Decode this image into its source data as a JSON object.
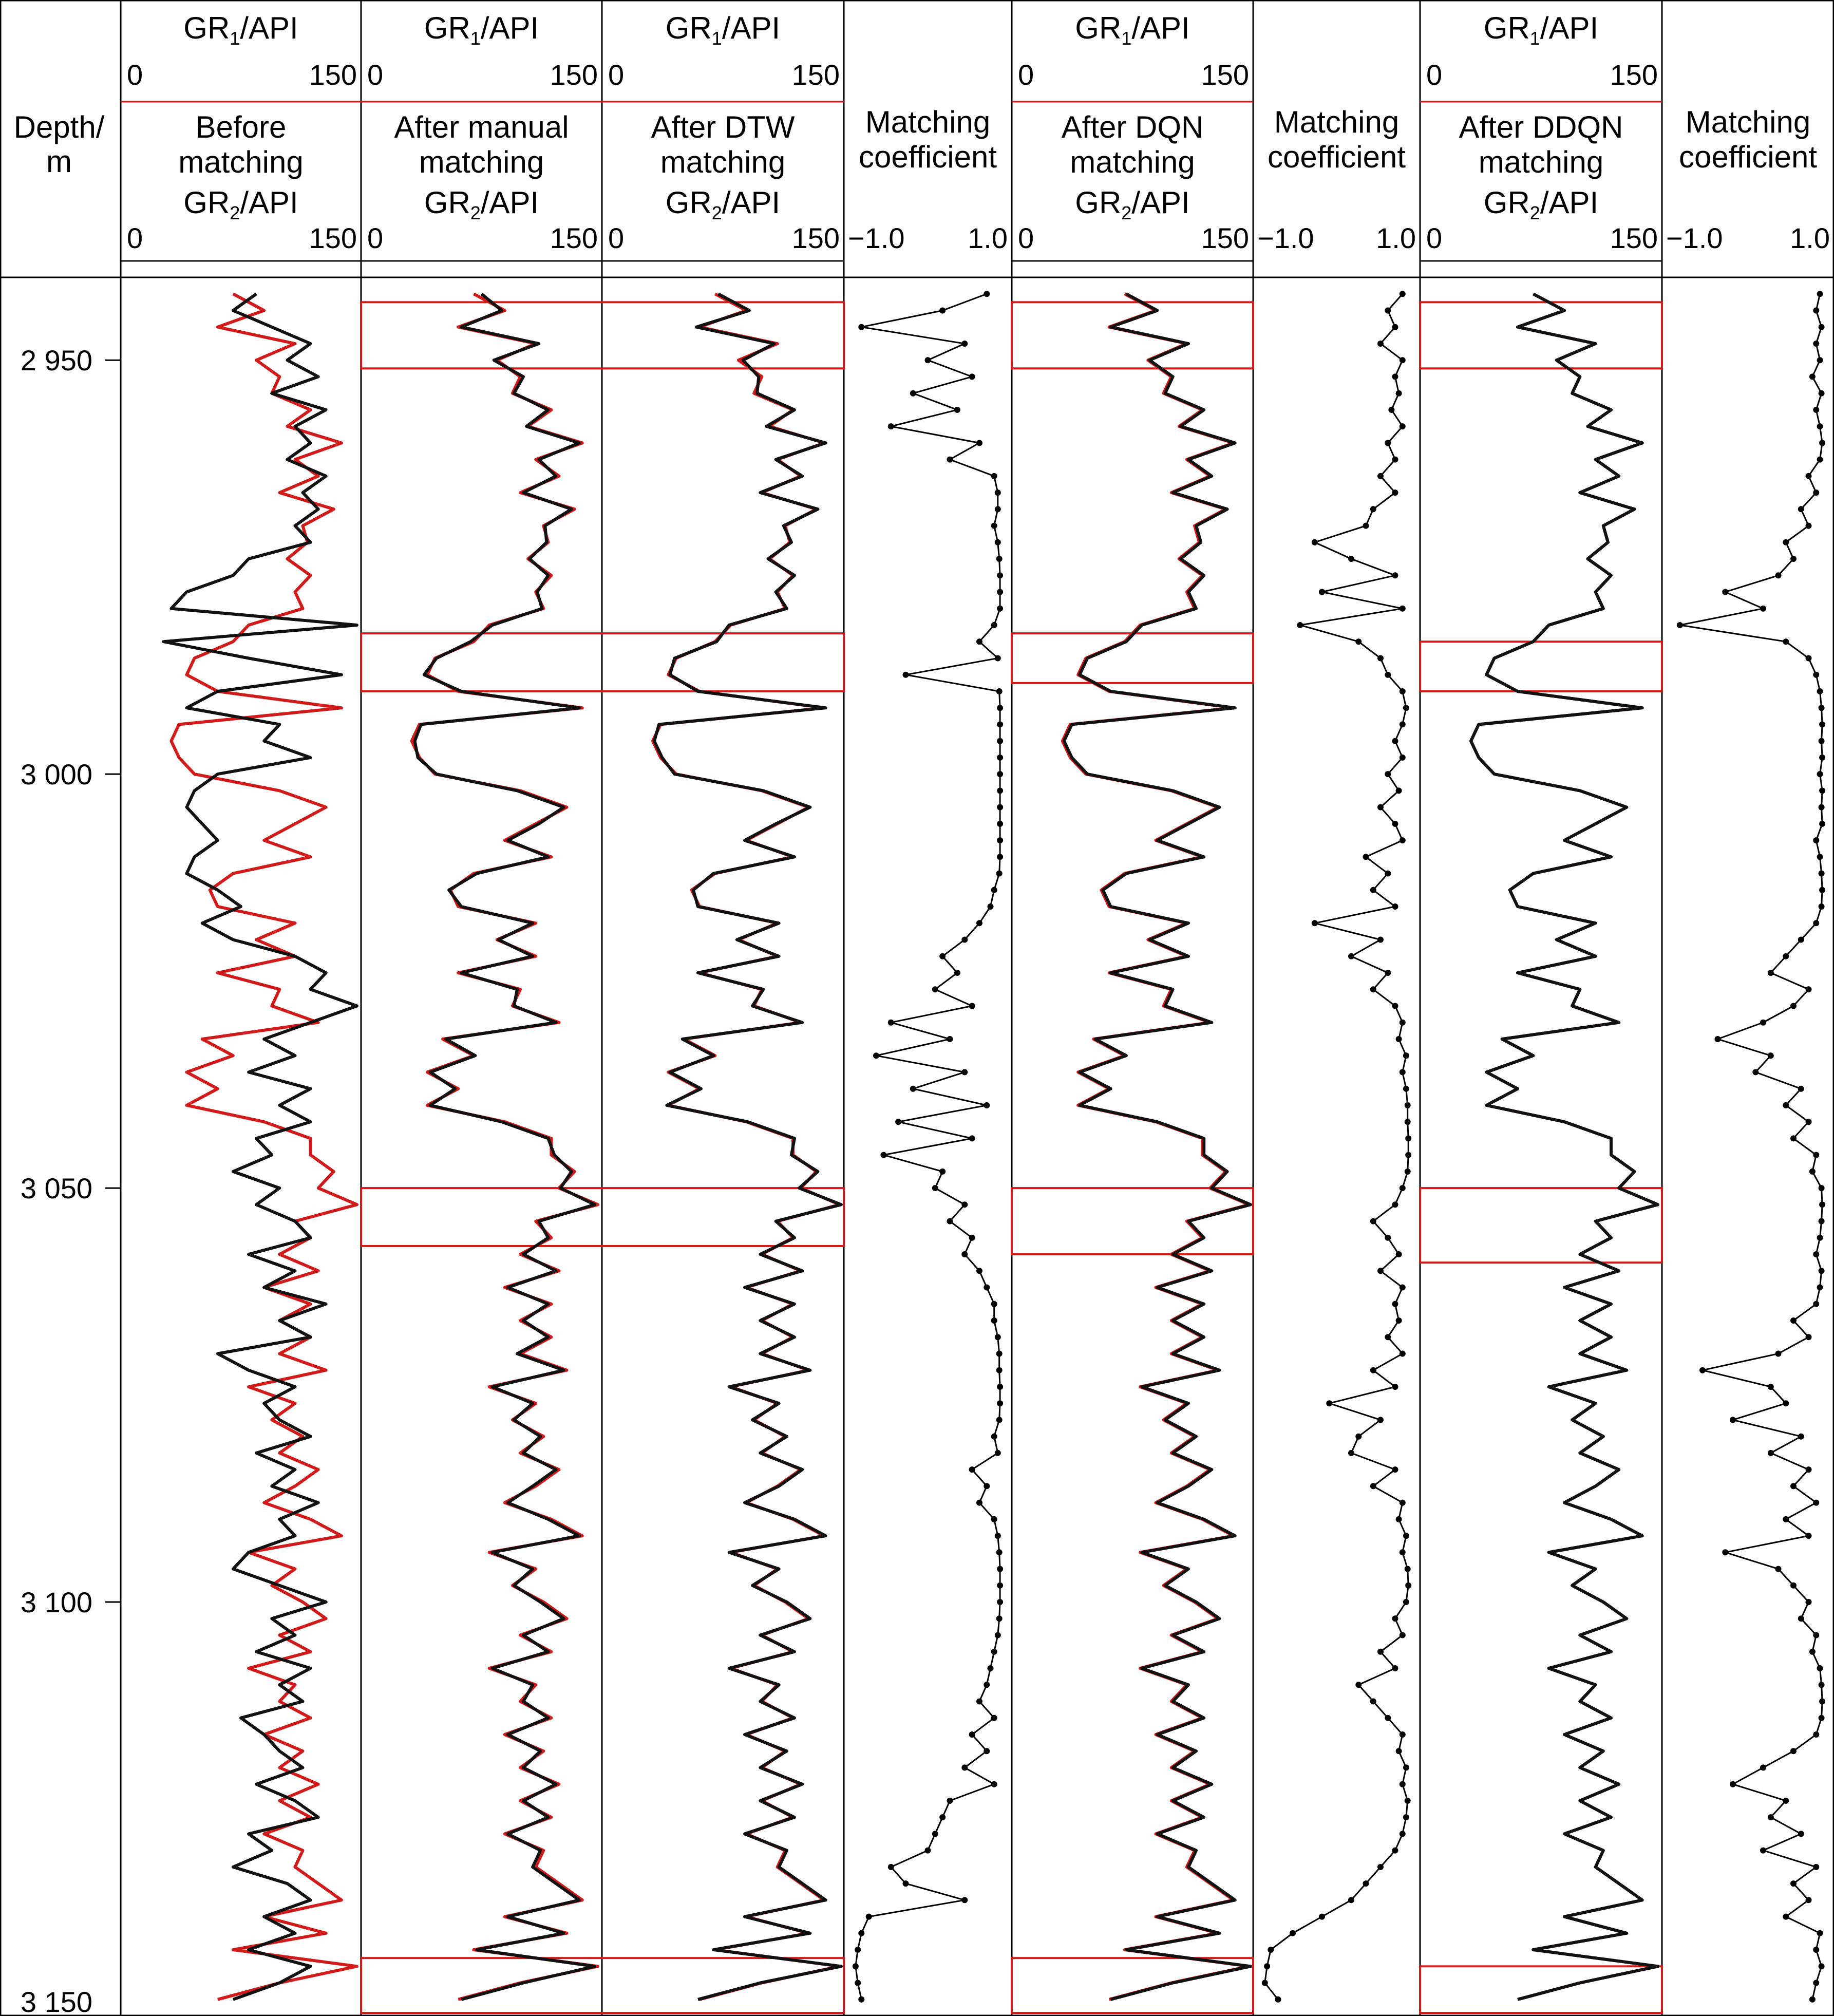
{
  "colors": {
    "gr1": "#d11a1a",
    "gr2": "#111111",
    "box": "#d11a1a",
    "frame": "#000000"
  },
  "depth_column": {
    "title_line1": "Depth/",
    "title_line2": "m"
  },
  "tracks": [
    {
      "kind": "log",
      "top_label_main": "GR",
      "top_label_sub": "1",
      "top_label_rest": "/API",
      "top_min": "0",
      "top_max": "150",
      "title_lines": [
        "Before",
        "matching"
      ],
      "bottom_label_main": "GR",
      "bottom_label_sub": "2",
      "bottom_label_rest": "/API",
      "bottom_min": "0",
      "bottom_max": "150"
    },
    {
      "kind": "log",
      "top_label_main": "GR",
      "top_label_sub": "1",
      "top_label_rest": "/API",
      "top_min": "0",
      "top_max": "150",
      "title_lines": [
        "After manual",
        "matching"
      ],
      "bottom_label_main": "GR",
      "bottom_label_sub": "2",
      "bottom_label_rest": "/API",
      "bottom_min": "0",
      "bottom_max": "150"
    },
    {
      "kind": "log",
      "top_label_main": "GR",
      "top_label_sub": "1",
      "top_label_rest": "/API",
      "top_min": "0",
      "top_max": "150",
      "title_lines": [
        "After DTW",
        "matching"
      ],
      "bottom_label_main": "GR",
      "bottom_label_sub": "2",
      "bottom_label_rest": "/API",
      "bottom_min": "0",
      "bottom_max": "150"
    },
    {
      "kind": "coef",
      "title_lines": [
        "Matching",
        "coefficient"
      ],
      "min": "−1.0",
      "max": "1.0"
    },
    {
      "kind": "log",
      "top_label_main": "GR",
      "top_label_sub": "1",
      "top_label_rest": "/API",
      "top_min": "0",
      "top_max": "150",
      "title_lines": [
        "After DQN",
        "matching"
      ],
      "bottom_label_main": "GR",
      "bottom_label_sub": "2",
      "bottom_label_rest": "/API",
      "bottom_min": "0",
      "bottom_max": "150"
    },
    {
      "kind": "coef",
      "title_lines": [
        "Matching",
        "coefficient"
      ],
      "min": "−1.0",
      "max": "1.0"
    },
    {
      "kind": "log",
      "top_label_main": "GR",
      "top_label_sub": "1",
      "top_label_rest": "/API",
      "top_min": "0",
      "top_max": "150",
      "title_lines": [
        "After DDQN",
        "matching"
      ],
      "bottom_label_main": "GR",
      "bottom_label_sub": "2",
      "bottom_label_rest": "/API",
      "bottom_min": "0",
      "bottom_max": "150"
    },
    {
      "kind": "coef",
      "title_lines": [
        "Matching",
        "coefficient"
      ],
      "min": "−1.0",
      "max": "1.0"
    }
  ],
  "chart_data": {
    "type": "line",
    "depth_axis": {
      "range": [
        2940,
        3150
      ],
      "ticks": [
        2950,
        3000,
        3050,
        3100,
        3150
      ],
      "tick_labels": [
        "2 950",
        "3 000",
        "3 050",
        "3 100",
        "3 150"
      ]
    },
    "gr_axis": {
      "range": [
        0,
        150
      ]
    },
    "coef_axis": {
      "range": [
        -1.0,
        1.0
      ]
    },
    "depth": [
      2942,
      2944,
      2946,
      2948,
      2950,
      2952,
      2954,
      2956,
      2958,
      2960,
      2962,
      2964,
      2966,
      2968,
      2970,
      2972,
      2974,
      2976,
      2978,
      2980,
      2982,
      2984,
      2986,
      2988,
      2990,
      2992,
      2994,
      2996,
      2998,
      3000,
      3002,
      3004,
      3006,
      3008,
      3010,
      3012,
      3014,
      3016,
      3018,
      3020,
      3022,
      3024,
      3026,
      3028,
      3030,
      3032,
      3034,
      3036,
      3038,
      3040,
      3042,
      3044,
      3046,
      3048,
      3050,
      3052,
      3054,
      3056,
      3058,
      3060,
      3062,
      3064,
      3066,
      3068,
      3070,
      3072,
      3074,
      3076,
      3078,
      3080,
      3082,
      3084,
      3086,
      3088,
      3090,
      3092,
      3094,
      3096,
      3098,
      3100,
      3102,
      3104,
      3106,
      3108,
      3110,
      3112,
      3114,
      3116,
      3118,
      3120,
      3122,
      3124,
      3126,
      3128,
      3130,
      3132,
      3134,
      3136,
      3138,
      3140,
      3142,
      3144,
      3146,
      3148
    ],
    "gr1_reference": [
      70,
      90,
      60,
      110,
      85,
      100,
      95,
      120,
      105,
      140,
      110,
      125,
      100,
      135,
      115,
      118,
      105,
      120,
      110,
      115,
      80,
      70,
      45,
      40,
      60,
      140,
      35,
      30,
      35,
      45,
      100,
      130,
      110,
      90,
      120,
      70,
      55,
      60,
      110,
      85,
      110,
      60,
      100,
      95,
      125,
      50,
      70,
      40,
      60,
      40,
      90,
      120,
      120,
      135,
      125,
      150,
      110,
      120,
      100,
      125,
      90,
      120,
      100,
      120,
      100,
      130,
      80,
      110,
      95,
      115,
      100,
      125,
      110,
      90,
      120,
      140,
      80,
      110,
      95,
      115,
      130,
      100,
      120,
      80,
      110,
      100,
      120,
      90,
      115,
      100,
      125,
      100,
      120,
      90,
      115,
      110,
      125,
      140,
      90,
      130,
      70,
      150,
      100,
      60
    ],
    "gr2_before": [
      85,
      70,
      95,
      120,
      105,
      125,
      95,
      130,
      110,
      120,
      105,
      130,
      115,
      125,
      110,
      120,
      80,
      70,
      40,
      30,
      150,
      25,
      80,
      140,
      60,
      40,
      100,
      90,
      120,
      60,
      45,
      40,
      50,
      60,
      45,
      40,
      60,
      75,
      50,
      70,
      110,
      130,
      120,
      150,
      120,
      90,
      110,
      80,
      120,
      100,
      120,
      85,
      95,
      70,
      100,
      85,
      110,
      120,
      80,
      110,
      90,
      130,
      100,
      120,
      60,
      80,
      110,
      90,
      100,
      120,
      85,
      110,
      95,
      125,
      100,
      110,
      80,
      70,
      100,
      130,
      95,
      110,
      85,
      120,
      100,
      115,
      75,
      90,
      100,
      115,
      85,
      110,
      125,
      80,
      95,
      70,
      105,
      120,
      90,
      110,
      80,
      120,
      100,
      70
    ],
    "gr2_after_manual": [
      75,
      88,
      62,
      112,
      83,
      102,
      96,
      118,
      104,
      138,
      112,
      123,
      102,
      133,
      116,
      117,
      106,
      118,
      111,
      114,
      82,
      68,
      46,
      38,
      62,
      138,
      36,
      32,
      34,
      46,
      98,
      128,
      112,
      92,
      118,
      72,
      54,
      62,
      108,
      86,
      108,
      62,
      98,
      96,
      123,
      52,
      71,
      42,
      58,
      42,
      88,
      118,
      122,
      133,
      126,
      148,
      112,
      118,
      102,
      123,
      92,
      118,
      102,
      118,
      98,
      128,
      82,
      108,
      96,
      113,
      102,
      123,
      108,
      92,
      118,
      138,
      82,
      108,
      96,
      113,
      128,
      102,
      118,
      82,
      108,
      102,
      118,
      92,
      113,
      102,
      123,
      102,
      118,
      92,
      113,
      108,
      123,
      138,
      92,
      128,
      72,
      148,
      102,
      62
    ],
    "gr2_after_dtw": [
      72,
      92,
      58,
      108,
      88,
      98,
      97,
      121,
      103,
      141,
      109,
      126,
      99,
      136,
      114,
      119,
      104,
      121,
      109,
      116,
      79,
      71,
      44,
      41,
      59,
      141,
      34,
      31,
      36,
      44,
      101,
      131,
      109,
      89,
      121,
      69,
      56,
      59,
      111,
      84,
      111,
      59,
      101,
      94,
      126,
      49,
      69,
      41,
      61,
      39,
      91,
      121,
      119,
      136,
      124,
      151,
      109,
      121,
      99,
      126,
      89,
      121,
      99,
      121,
      99,
      131,
      79,
      111,
      94,
      116,
      99,
      126,
      111,
      89,
      121,
      141,
      79,
      111,
      94,
      116,
      131,
      99,
      121,
      79,
      111,
      99,
      121,
      89,
      116,
      99,
      126,
      99,
      121,
      89,
      116,
      111,
      126,
      141,
      89,
      131,
      69,
      151,
      99,
      59
    ],
    "gr2_after_dqn": [
      71,
      91,
      61,
      111,
      86,
      101,
      96,
      121,
      106,
      141,
      111,
      126,
      101,
      136,
      116,
      119,
      106,
      121,
      111,
      116,
      81,
      71,
      46,
      41,
      61,
      141,
      36,
      31,
      36,
      46,
      101,
      131,
      111,
      91,
      121,
      71,
      56,
      61,
      111,
      86,
      111,
      61,
      101,
      96,
      126,
      51,
      71,
      41,
      61,
      41,
      91,
      121,
      121,
      136,
      126,
      151,
      111,
      121,
      101,
      126,
      91,
      121,
      101,
      121,
      101,
      131,
      81,
      111,
      96,
      116,
      101,
      126,
      111,
      91,
      121,
      141,
      81,
      111,
      96,
      116,
      131,
      101,
      121,
      81,
      111,
      101,
      121,
      91,
      116,
      101,
      126,
      101,
      121,
      91,
      116,
      111,
      126,
      141,
      91,
      131,
      71,
      151,
      101,
      61
    ],
    "gr2_after_ddqn": [
      70,
      90,
      60,
      110,
      85,
      100,
      95,
      120,
      105,
      140,
      110,
      125,
      100,
      135,
      115,
      118,
      105,
      120,
      110,
      115,
      80,
      70,
      45,
      40,
      60,
      140,
      35,
      30,
      35,
      45,
      100,
      130,
      110,
      90,
      120,
      70,
      55,
      60,
      110,
      85,
      110,
      60,
      100,
      95,
      125,
      50,
      70,
      40,
      60,
      40,
      90,
      120,
      120,
      135,
      125,
      150,
      110,
      120,
      100,
      125,
      90,
      120,
      100,
      120,
      100,
      130,
      80,
      110,
      95,
      115,
      100,
      125,
      110,
      90,
      120,
      140,
      80,
      110,
      95,
      115,
      130,
      100,
      120,
      80,
      110,
      100,
      120,
      90,
      115,
      100,
      125,
      100,
      120,
      90,
      115,
      110,
      125,
      140,
      90,
      130,
      70,
      150,
      100,
      60
    ],
    "coef_dtw": [
      0.8,
      0.2,
      -0.9,
      0.5,
      0.0,
      0.6,
      -0.2,
      0.4,
      -0.5,
      0.7,
      0.3,
      0.9,
      0.95,
      0.95,
      0.9,
      0.95,
      0.97,
      0.98,
      0.98,
      0.98,
      0.9,
      0.7,
      0.95,
      -0.3,
      0.97,
      0.98,
      0.98,
      0.98,
      0.98,
      0.98,
      0.98,
      0.98,
      0.98,
      0.98,
      0.98,
      0.97,
      0.9,
      0.85,
      0.7,
      0.5,
      0.2,
      0.4,
      0.1,
      0.6,
      -0.5,
      0.3,
      -0.7,
      0.5,
      -0.2,
      0.8,
      -0.4,
      0.6,
      -0.6,
      0.2,
      0.1,
      0.5,
      0.3,
      0.6,
      0.5,
      0.7,
      0.8,
      0.9,
      0.9,
      0.95,
      0.97,
      0.97,
      0.98,
      0.98,
      0.97,
      0.9,
      0.95,
      0.6,
      0.8,
      0.7,
      0.9,
      0.95,
      0.97,
      0.98,
      0.98,
      0.98,
      0.97,
      0.95,
      0.9,
      0.85,
      0.8,
      0.7,
      0.9,
      0.6,
      0.8,
      0.5,
      0.9,
      0.3,
      0.2,
      0.1,
      0.0,
      -0.5,
      -0.3,
      0.5,
      -0.8,
      -0.9,
      -0.95,
      -0.98,
      -0.95,
      -0.9
    ],
    "coef_dqn": [
      0.9,
      0.7,
      0.8,
      0.6,
      0.9,
      0.8,
      0.85,
      0.75,
      0.9,
      0.7,
      0.8,
      0.6,
      0.8,
      0.5,
      0.4,
      -0.3,
      0.2,
      0.8,
      -0.2,
      0.9,
      -0.5,
      0.3,
      0.6,
      0.7,
      0.9,
      0.95,
      0.9,
      0.8,
      0.9,
      0.7,
      0.85,
      0.6,
      0.8,
      0.9,
      0.4,
      0.7,
      0.5,
      0.8,
      -0.3,
      0.6,
      0.2,
      0.7,
      0.5,
      0.8,
      0.9,
      0.85,
      0.95,
      0.9,
      0.95,
      0.97,
      0.97,
      0.98,
      0.98,
      0.97,
      0.9,
      0.8,
      0.5,
      0.7,
      0.85,
      0.6,
      0.9,
      0.8,
      0.85,
      0.7,
      0.9,
      0.5,
      0.8,
      -0.1,
      0.6,
      0.3,
      0.2,
      0.8,
      0.5,
      0.9,
      0.85,
      0.95,
      0.9,
      0.97,
      0.98,
      0.95,
      0.8,
      0.9,
      0.6,
      0.8,
      0.3,
      0.5,
      0.7,
      0.9,
      0.85,
      0.95,
      0.9,
      0.97,
      0.95,
      0.9,
      0.8,
      0.6,
      0.4,
      0.2,
      -0.2,
      -0.6,
      -0.9,
      -0.95,
      -0.98,
      -0.8
    ],
    "coef_ddqn": [
      0.95,
      0.9,
      0.97,
      0.9,
      0.95,
      0.85,
      0.97,
      0.9,
      0.95,
      0.98,
      0.95,
      0.8,
      0.9,
      0.7,
      0.8,
      0.5,
      0.6,
      0.4,
      -0.3,
      0.2,
      -0.9,
      0.5,
      0.8,
      0.9,
      0.95,
      0.97,
      0.98,
      0.97,
      0.98,
      0.95,
      0.98,
      0.97,
      0.98,
      0.9,
      0.95,
      0.97,
      0.98,
      0.97,
      0.9,
      0.7,
      0.5,
      0.3,
      0.8,
      0.6,
      0.2,
      -0.4,
      0.3,
      0.1,
      0.7,
      0.5,
      0.8,
      0.6,
      0.9,
      0.85,
      0.97,
      0.98,
      0.97,
      0.95,
      0.9,
      0.97,
      0.95,
      0.9,
      0.6,
      0.8,
      0.4,
      -0.6,
      0.3,
      0.5,
      -0.2,
      0.7,
      0.3,
      0.8,
      0.6,
      0.9,
      0.5,
      0.8,
      -0.3,
      0.4,
      0.6,
      0.8,
      0.7,
      0.9,
      0.85,
      0.95,
      0.97,
      0.98,
      0.97,
      0.9,
      0.6,
      0.2,
      -0.2,
      0.5,
      0.3,
      0.7,
      0.2,
      0.9,
      0.6,
      0.8,
      0.5,
      0.95,
      0.9,
      0.97,
      0.9,
      0.85
    ]
  },
  "highlight_boxes": {
    "manual_dtw": [
      [
        2943,
        2951
      ],
      [
        2983,
        2990
      ],
      [
        3050,
        3057
      ],
      [
        3143,
        3156
      ]
    ],
    "dqn": [
      [
        2943,
        2951
      ],
      [
        2983,
        2989
      ],
      [
        3050,
        3058
      ],
      [
        3143,
        3156
      ]
    ],
    "ddqn": [
      [
        2943,
        2951
      ],
      [
        2984,
        2990
      ],
      [
        3050,
        3059
      ],
      [
        3144,
        3156
      ]
    ]
  }
}
